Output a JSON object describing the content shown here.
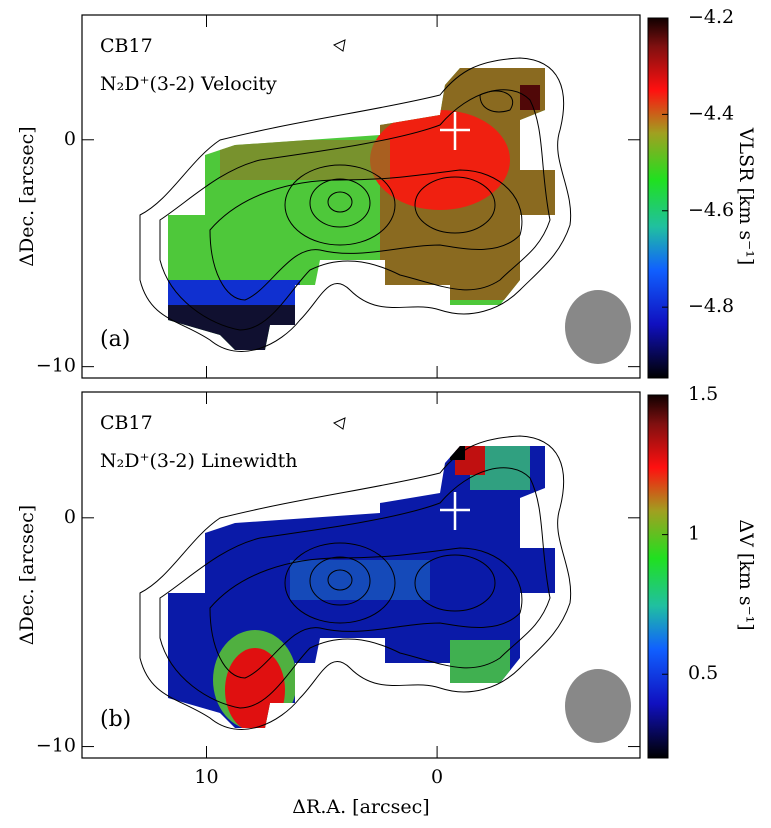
{
  "chart_data": [
    {
      "type": "map",
      "title": "CB17",
      "subtitle": "N₂D⁺(3-2) Velocity",
      "panel_label": "(a)",
      "ylabel": "ΔDec. [arcsec]",
      "xlim": [
        15.4,
        -8.8
      ],
      "xticks": [
        10,
        0
      ],
      "xtick_labels": false,
      "ylim": [
        -10.5,
        5.5
      ],
      "yticks": [
        0,
        {
          "value": -10,
          "label": "−10"
        }
      ],
      "colorbar": {
        "label": "VLSR [km s⁻¹]",
        "lim": [
          -4.947,
          -4.2
        ],
        "ticks": [
          {
            "value": -4.2,
            "label": "−4.2"
          },
          {
            "value": -4.4,
            "label": "−4.4"
          },
          {
            "value": -4.6,
            "label": "−4.6"
          },
          {
            "value": -4.8,
            "label": "−4.8"
          }
        ]
      }
    },
    {
      "type": "map",
      "title": "CB17",
      "subtitle": "N₂D⁺(3-2) Linewidth",
      "panel_label": "(b)",
      "ylabel": "ΔDec. [arcsec]",
      "xlabel": "ΔR.A. [arcsec]",
      "xlim": [
        15.4,
        -8.8
      ],
      "xticks": [
        10,
        0
      ],
      "xtick_labels": true,
      "ylim": [
        -10.5,
        5.5
      ],
      "yticks": [
        0,
        {
          "value": -10,
          "label": "−10"
        }
      ],
      "colorbar": {
        "label": "ΔV [km s⁻¹]",
        "lim": [
          0.2,
          1.5
        ],
        "ticks": [
          1.5,
          1,
          0.5
        ]
      }
    }
  ]
}
